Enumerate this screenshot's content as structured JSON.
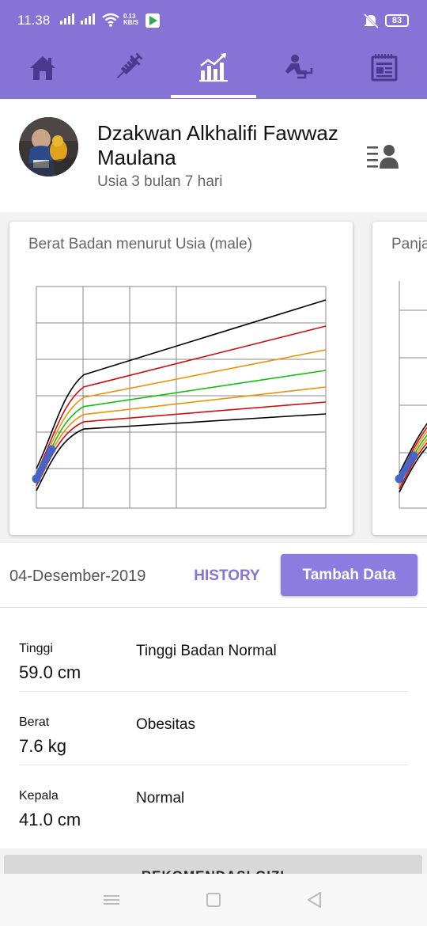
{
  "status_bar": {
    "time": "11.38",
    "speed_value": "0.13",
    "speed_unit": "KB/S",
    "battery": "83",
    "icons": [
      "signal-icon",
      "wifi-icon",
      "play-store-icon",
      "mute-vibrate-icon",
      "battery-icon"
    ]
  },
  "tabs": [
    {
      "name": "home",
      "icon": "home-icon",
      "selected": false
    },
    {
      "name": "immunization",
      "icon": "syringe-icon",
      "selected": false
    },
    {
      "name": "growth-chart",
      "icon": "growth-chart-icon",
      "selected": true
    },
    {
      "name": "development",
      "icon": "child-development-icon",
      "selected": false
    },
    {
      "name": "notes",
      "icon": "notes-icon",
      "selected": false
    }
  ],
  "profile": {
    "name": "Dzakwan Alkhalifi Fawwaz Maulana",
    "age": "Usia 3 bulan 7 hari",
    "switch_icon": "profile-list-icon"
  },
  "charts": [
    {
      "title": "Berat Badan menurut Usia (male)",
      "chart_data": {
        "type": "line",
        "series_colors": [
          "#000000",
          "#d01010",
          "#f0900a",
          "#10c010",
          "#f0900a",
          "#d01010",
          "#000000"
        ],
        "child_series_color": "#4566c6",
        "grid": true
      }
    },
    {
      "title": "Panja"
    }
  ],
  "record": {
    "date": "04-Desember-2019",
    "history_label": "HISTORY",
    "add_label": "Tambah Data"
  },
  "measurements": [
    {
      "label": "Tinggi",
      "value": "59.0 cm",
      "status": "Tinggi Badan Normal"
    },
    {
      "label": "Berat",
      "value": "7.6 kg",
      "status": "Obesitas"
    },
    {
      "label": "Kepala",
      "value": "41.0 cm",
      "status": "Normal"
    }
  ],
  "recommendation_label": "REKOMENDASI GIZI",
  "colors": {
    "primary": "#8573d6",
    "button": "#8d7ce0",
    "background": "#f2f2f2"
  }
}
